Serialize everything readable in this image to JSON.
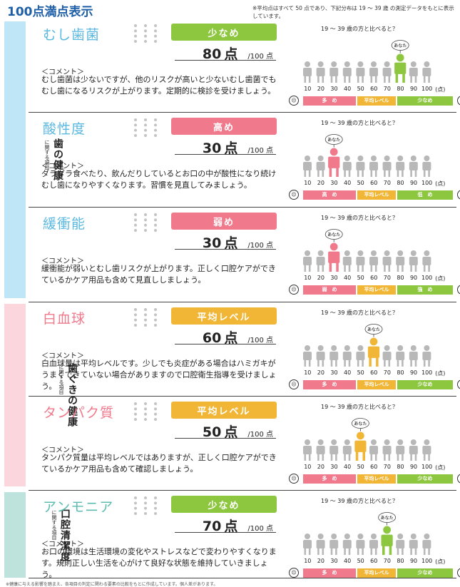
{
  "page_title": "100点満点表示",
  "note": "※平均点はすべて 50 点であり、下記分布は 19 ～ 39 歳 の測定データをもとに表示しています。",
  "footer_note": "※健康に与える影響を踏まえ、各項目の判定に関わる要素の比較をもとに作成しています。個人差があります。",
  "bands": [
    {
      "main": "歯の健康",
      "sub": "に関する項目"
    },
    {
      "main": "歯ぐきの健康",
      "sub": "に関する項目"
    },
    {
      "main": "口腔清潔度",
      "sub": "に関する項目"
    }
  ],
  "common": {
    "comment_header": "＜コメント＞",
    "score_unit": "点",
    "score_total": "/100 点",
    "compare_title": "19 ～ 39 歳の方と比べると？",
    "you_label": "あなた",
    "ticks": [
      "10",
      "20",
      "30",
      "40",
      "50",
      "60",
      "70",
      "80",
      "90",
      "100",
      "(点)"
    ],
    "face_bad": "☹",
    "face_good": "☺"
  },
  "items": [
    {
      "name": "むし歯菌",
      "name_color": "#5bb8e0",
      "level": "少なめ",
      "level_color": "#8dc63f",
      "score": "80",
      "position": 8,
      "you_color": "#8dc63f",
      "comment": "むし歯菌は少ないですが、他のリスクが高いと少ないむし歯菌でもむし歯になるリスクが上がります。定期的に検診を受けましょう。",
      "scale": [
        {
          "label": "多　め",
          "color": "#f07a8c"
        },
        {
          "label": "平均レベル",
          "color": "#f2b636"
        },
        {
          "label": "少なめ",
          "color": "#8dc63f"
        }
      ]
    },
    {
      "name": "酸性度",
      "name_color": "#5bb8e0",
      "level": "高め",
      "level_color": "#f07a8c",
      "score": "30",
      "position": 3,
      "you_color": "#f07a8c",
      "comment": "ダラダラ食べたり、飲んだりしているとお口の中が酸性になり続けむし歯になりやすくなります。習慣を見直してみましょう。",
      "scale": [
        {
          "label": "高　め",
          "color": "#f07a8c"
        },
        {
          "label": "平均レベル",
          "color": "#f2b636"
        },
        {
          "label": "低　め",
          "color": "#8dc63f"
        }
      ]
    },
    {
      "name": "緩衝能",
      "name_color": "#5bb8e0",
      "level": "弱め",
      "level_color": "#f07a8c",
      "score": "30",
      "position": 3,
      "you_color": "#f07a8c",
      "comment": "緩衝能が弱いとむし歯リスクが上がります。正しく口腔ケアができているかケア用品も含めて見直ししましょう。",
      "scale": [
        {
          "label": "弱　め",
          "color": "#f07a8c"
        },
        {
          "label": "平均レベル",
          "color": "#f2b636"
        },
        {
          "label": "強　め",
          "color": "#8dc63f"
        }
      ]
    },
    {
      "name": "白血球",
      "name_color": "#f07a8c",
      "level": "平均レベル",
      "level_color": "#f2b636",
      "score": "60",
      "position": 6,
      "you_color": "#f2b636",
      "comment": "白血球量は平均レベルです。少しでも炎症がある場合はハミガキがうまくできていない場合がありますので口腔衛生指導を受けましょう。",
      "scale": [
        {
          "label": "多　め",
          "color": "#f07a8c"
        },
        {
          "label": "平均レベル",
          "color": "#f2b636"
        },
        {
          "label": "少なめ",
          "color": "#8dc63f"
        }
      ]
    },
    {
      "name": "タンパク質",
      "name_color": "#f07a8c",
      "level": "平均レベル",
      "level_color": "#f2b636",
      "score": "50",
      "position": 5,
      "you_color": "#f2b636",
      "comment": "タンパク質量は平均レベルではありますが、正しく口腔ケアができているかケア用品も含めて確認しましょう。",
      "scale": [
        {
          "label": "多　め",
          "color": "#f07a8c"
        },
        {
          "label": "平均レベル",
          "color": "#f2b636"
        },
        {
          "label": "少なめ",
          "color": "#8dc63f"
        }
      ]
    },
    {
      "name": "アンモニア",
      "name_color": "#5cbcb0",
      "level": "少なめ",
      "level_color": "#8dc63f",
      "score": "70",
      "position": 7,
      "you_color": "#8dc63f",
      "comment": "お口の環境は生活環境の変化やストレスなどで変わりやすくなります。規則正しい生活を心がけて良好な状態を維持していきましょう。",
      "scale": [
        {
          "label": "多　め",
          "color": "#f07a8c"
        },
        {
          "label": "平均レベル",
          "color": "#f2b636"
        },
        {
          "label": "少なめ",
          "color": "#8dc63f"
        }
      ]
    }
  ]
}
